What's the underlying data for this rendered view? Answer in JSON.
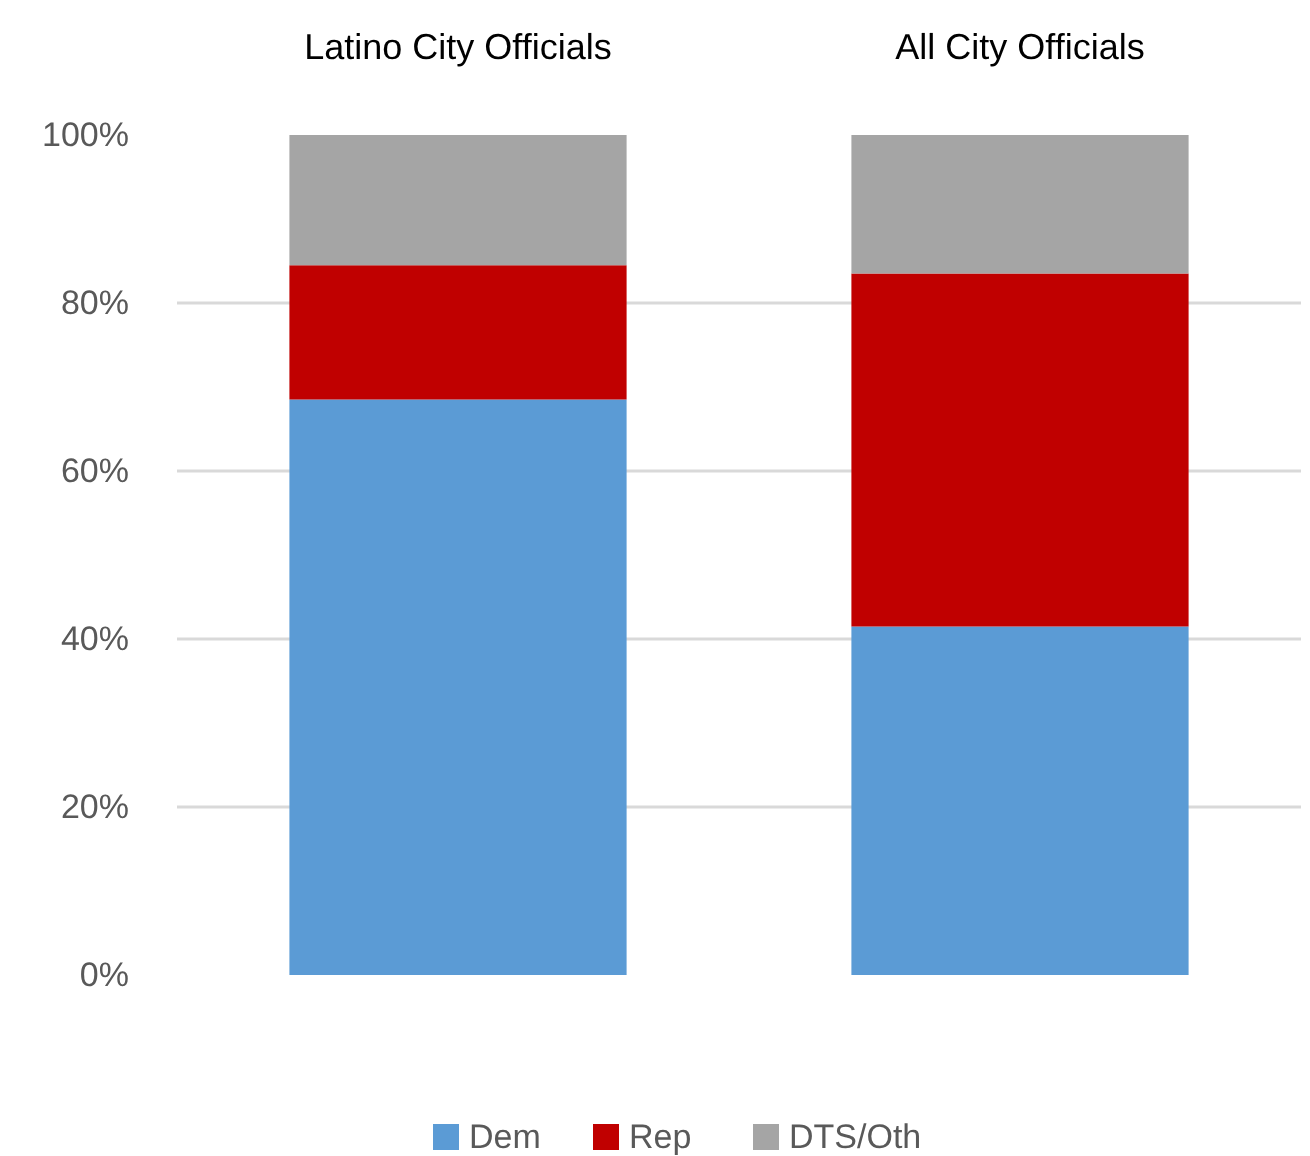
{
  "chart_data": {
    "type": "bar",
    "stacked": true,
    "categories": [
      "Latino City Officials",
      "All City Officials"
    ],
    "series": [
      {
        "name": "Dem",
        "color": "#5b9bd5",
        "values": [
          68.5,
          41.5
        ]
      },
      {
        "name": "Rep",
        "color": "#c00000",
        "values": [
          16,
          42
        ]
      },
      {
        "name": "DTS/Oth",
        "color": "#a5a5a5",
        "values": [
          15.5,
          16.5
        ]
      }
    ],
    "ylim": [
      0,
      100
    ],
    "yticks": [
      {
        "value": 0,
        "label": "0%"
      },
      {
        "value": 20,
        "label": "20%"
      },
      {
        "value": 40,
        "label": "40%"
      },
      {
        "value": 60,
        "label": "60%"
      },
      {
        "value": 80,
        "label": "80%"
      },
      {
        "value": 100,
        "label": "100%"
      }
    ],
    "grid": "y",
    "legend": "bottom"
  }
}
